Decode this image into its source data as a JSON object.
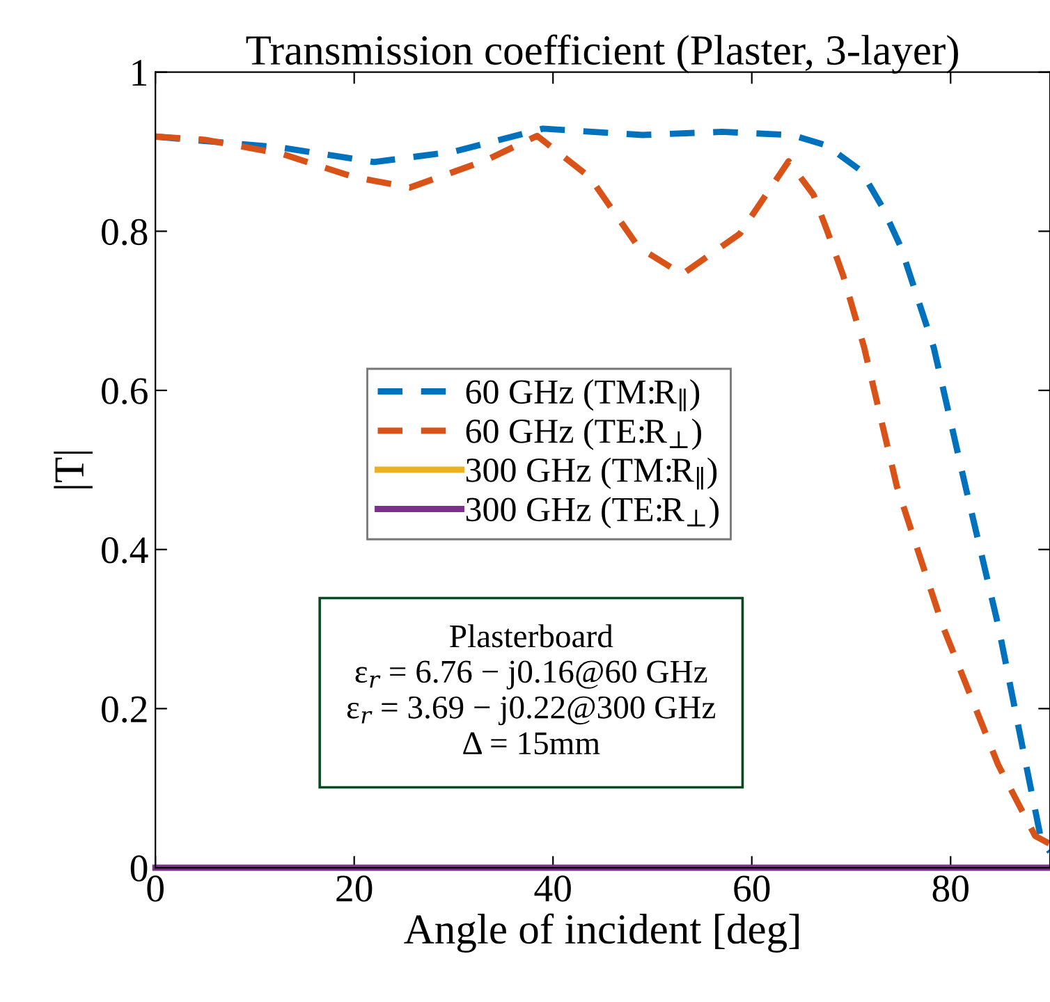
{
  "chart_data": {
    "type": "line",
    "title": "Transmission coefficient (Plaster, 3-layer)",
    "xlabel": "Angle of incident [deg]",
    "ylabel": "|T|",
    "xlim": [
      0,
      90
    ],
    "ylim": [
      0,
      1
    ],
    "xticks": [
      0,
      20,
      40,
      60,
      80
    ],
    "yticks": [
      0,
      0.2,
      0.4,
      0.6,
      0.8,
      1
    ],
    "grid": false,
    "legend": "center",
    "marker": "none",
    "series": [
      {
        "name": "60 GHz (TM:R$_{∥}$)",
        "color": "#0072bd",
        "line_style": "dashed",
        "x": [
          0,
          12.8,
          22,
          30,
          39,
          49,
          57,
          64,
          67.5,
          71,
          73.2,
          75,
          78.3,
          81.5,
          84.8,
          87.6,
          89.1,
          90
        ],
        "values": [
          0.919,
          0.905,
          0.887,
          0.9,
          0.929,
          0.921,
          0.925,
          0.921,
          0.908,
          0.876,
          0.829,
          0.78,
          0.654,
          0.479,
          0.304,
          0.129,
          0.036,
          0.02
        ]
      },
      {
        "name": "60 GHz (TE:R$_{⊥}$)",
        "color": "#d95319",
        "line_style": "dashed",
        "x": [
          0,
          5,
          12.8,
          20,
          25.6,
          33.2,
          38.4,
          43.7,
          48.6,
          53,
          58.8,
          63.7,
          66.2,
          67.6,
          69.2,
          71.3,
          74.6,
          79.2,
          84.8,
          88.5,
          90
        ],
        "values": [
          0.919,
          0.915,
          0.897,
          0.868,
          0.855,
          0.889,
          0.92,
          0.868,
          0.78,
          0.746,
          0.797,
          0.888,
          0.846,
          0.8,
          0.744,
          0.654,
          0.479,
          0.304,
          0.129,
          0.04,
          0.03
        ]
      },
      {
        "name": "300 GHz (TM:R$_{∥}$)",
        "color": "#edb120",
        "line_style": "solid"
      },
      {
        "name": "300 GHz (TE:R$_{⊥}$)",
        "color": "#7e2f8e",
        "line_style": "solid",
        "x": [
          0,
          90
        ],
        "values": [
          0,
          0
        ]
      }
    ],
    "annotations": [
      "Plasterboard\nε$_{r}$ = 6.76 − j0.16@60 GHz\nε$_{r}$ = 3.69 − j0.22@300 GHz\nΔ = 15mm"
    ]
  }
}
